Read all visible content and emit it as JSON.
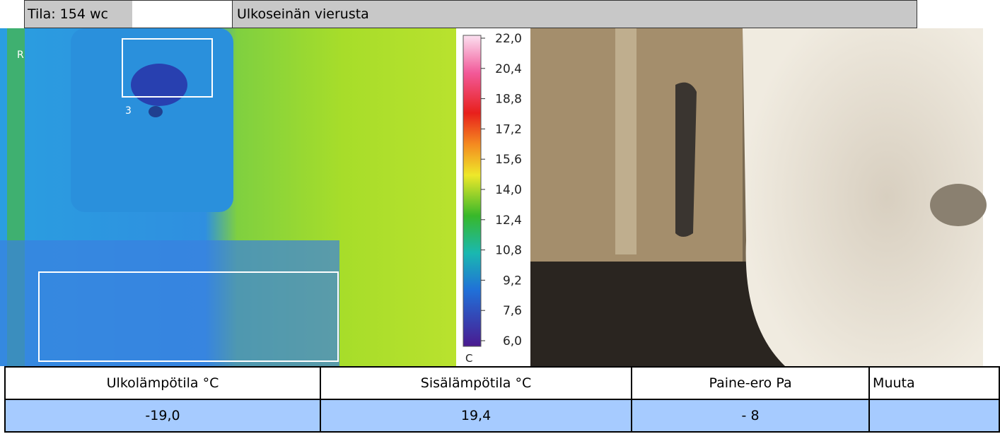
{
  "header": {
    "label": "Tila:  154 wc",
    "title": "Ulkoseinän vierusta"
  },
  "thermal": {
    "markers": [
      "R",
      "3"
    ],
    "scale": {
      "ticks": [
        "22,0",
        "20,4",
        "18,8",
        "17,2",
        "15,6",
        "14,0",
        "12,4",
        "10,8",
        "9,2",
        "7,6",
        "6,0"
      ],
      "unit": "C"
    }
  },
  "table": {
    "headers": [
      "Ulkolämpötila °C",
      "Sisälämpötila °C",
      "Paine-ero Pa",
      "Muuta"
    ],
    "rows": [
      [
        "-19,0",
        "19,4",
        "- 8"
      ]
    ]
  }
}
